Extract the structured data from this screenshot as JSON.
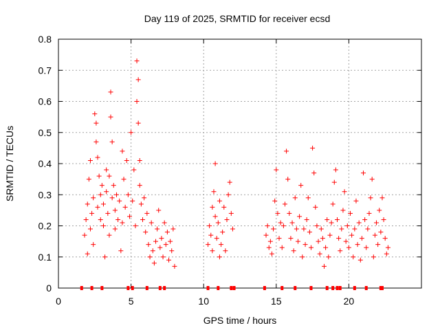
{
  "chart_data": {
    "type": "scatter",
    "title": "Day 119 of 2025, SRMTID for receiver ecsd",
    "xlabel": "GPS time / hours",
    "ylabel": "SRMTID / TECUs",
    "xlim": [
      0,
      25
    ],
    "ylim": [
      0,
      0.8
    ],
    "x_ticks": [
      "0",
      "5",
      "10",
      "15",
      "20"
    ],
    "x_tick_values": [
      0,
      5,
      10,
      15,
      20
    ],
    "y_ticks": [
      "0",
      "0.1",
      "0.2",
      "0.3",
      "0.4",
      "0.5",
      "0.6",
      "0.7",
      "0.8"
    ],
    "y_tick_values": [
      0,
      0.1,
      0.2,
      0.3,
      0.4,
      0.5,
      0.6,
      0.7,
      0.8
    ],
    "grid": true,
    "marker": "+",
    "color": "#ff0000",
    "series": [
      {
        "name": "SRMTID",
        "points": [
          [
            1.8,
            0.17
          ],
          [
            1.9,
            0.22
          ],
          [
            2.0,
            0.27
          ],
          [
            2.0,
            0.11
          ],
          [
            2.1,
            0.35
          ],
          [
            2.2,
            0.41
          ],
          [
            2.2,
            0.19
          ],
          [
            2.3,
            0.24
          ],
          [
            2.4,
            0.29
          ],
          [
            2.4,
            0.14
          ],
          [
            2.5,
            0.56
          ],
          [
            2.6,
            0.53
          ],
          [
            2.6,
            0.47
          ],
          [
            2.7,
            0.42
          ],
          [
            2.7,
            0.26
          ],
          [
            2.8,
            0.36
          ],
          [
            2.9,
            0.3
          ],
          [
            2.9,
            0.22
          ],
          [
            3.0,
            0.33
          ],
          [
            3.1,
            0.2
          ],
          [
            3.1,
            0.27
          ],
          [
            3.2,
            0.1
          ],
          [
            3.3,
            0.38
          ],
          [
            3.3,
            0.31
          ],
          [
            3.4,
            0.24
          ],
          [
            3.5,
            0.36
          ],
          [
            3.5,
            0.17
          ],
          [
            3.6,
            0.63
          ],
          [
            3.6,
            0.55
          ],
          [
            3.7,
            0.47
          ],
          [
            3.7,
            0.29
          ],
          [
            3.8,
            0.33
          ],
          [
            3.9,
            0.25
          ],
          [
            3.9,
            0.19
          ],
          [
            4.0,
            0.3
          ],
          [
            4.1,
            0.22
          ],
          [
            4.2,
            0.28
          ],
          [
            4.3,
            0.12
          ],
          [
            4.4,
            0.44
          ],
          [
            4.4,
            0.21
          ],
          [
            4.5,
            0.35
          ],
          [
            4.6,
            0.26
          ],
          [
            4.7,
            0.41
          ],
          [
            4.8,
            0.3
          ],
          [
            4.9,
            0.23
          ],
          [
            5.0,
            0.5
          ],
          [
            5.1,
            0.28
          ],
          [
            5.2,
            0.38
          ],
          [
            5.3,
            0.2
          ],
          [
            5.4,
            0.6
          ],
          [
            5.4,
            0.73
          ],
          [
            5.5,
            0.67
          ],
          [
            5.5,
            0.53
          ],
          [
            5.6,
            0.41
          ],
          [
            5.6,
            0.33
          ],
          [
            5.7,
            0.27
          ],
          [
            5.8,
            0.22
          ],
          [
            5.9,
            0.29
          ],
          [
            6.0,
            0.18
          ],
          [
            6.1,
            0.24
          ],
          [
            6.2,
            0.14
          ],
          [
            6.3,
            0.1
          ],
          [
            6.4,
            0.21
          ],
          [
            6.5,
            0.12
          ],
          [
            6.6,
            0.08
          ],
          [
            6.7,
            0.15
          ],
          [
            6.8,
            0.19
          ],
          [
            6.9,
            0.25
          ],
          [
            7.0,
            0.13
          ],
          [
            7.1,
            0.16
          ],
          [
            7.2,
            0.1
          ],
          [
            7.3,
            0.21
          ],
          [
            7.4,
            0.14
          ],
          [
            7.5,
            0.18
          ],
          [
            7.6,
            0.09
          ],
          [
            7.7,
            0.15
          ],
          [
            7.8,
            0.12
          ],
          [
            7.9,
            0.19
          ],
          [
            8.0,
            0.07
          ],
          [
            10.3,
            0.14
          ],
          [
            10.4,
            0.2
          ],
          [
            10.5,
            0.17
          ],
          [
            10.6,
            0.26
          ],
          [
            10.6,
            0.12
          ],
          [
            10.7,
            0.31
          ],
          [
            10.8,
            0.4
          ],
          [
            10.8,
            0.23
          ],
          [
            10.9,
            0.16
          ],
          [
            11.0,
            0.21
          ],
          [
            11.1,
            0.28
          ],
          [
            11.1,
            0.1
          ],
          [
            11.2,
            0.14
          ],
          [
            11.3,
            0.18
          ],
          [
            11.4,
            0.26
          ],
          [
            11.5,
            0.12
          ],
          [
            11.6,
            0.22
          ],
          [
            11.7,
            0.3
          ],
          [
            11.8,
            0.34
          ],
          [
            11.9,
            0.24
          ],
          [
            12.0,
            0.19
          ],
          [
            14.3,
            0.17
          ],
          [
            14.4,
            0.2
          ],
          [
            14.5,
            0.13
          ],
          [
            14.6,
            0.15
          ],
          [
            14.7,
            0.11
          ],
          [
            14.8,
            0.19
          ],
          [
            14.9,
            0.28
          ],
          [
            15.0,
            0.38
          ],
          [
            15.1,
            0.24
          ],
          [
            15.2,
            0.16
          ],
          [
            15.3,
            0.21
          ],
          [
            15.4,
            0.13
          ],
          [
            15.5,
            0.2
          ],
          [
            15.6,
            0.27
          ],
          [
            15.7,
            0.44
          ],
          [
            15.8,
            0.35
          ],
          [
            15.9,
            0.24
          ],
          [
            16.0,
            0.16
          ],
          [
            16.1,
            0.21
          ],
          [
            16.2,
            0.12
          ],
          [
            16.3,
            0.29
          ],
          [
            16.4,
            0.19
          ],
          [
            16.5,
            0.15
          ],
          [
            16.6,
            0.23
          ],
          [
            16.7,
            0.33
          ],
          [
            16.8,
            0.1
          ],
          [
            16.9,
            0.19
          ],
          [
            17.0,
            0.14
          ],
          [
            17.1,
            0.22
          ],
          [
            17.2,
            0.29
          ],
          [
            17.3,
            0.18
          ],
          [
            17.4,
            0.13
          ],
          [
            17.5,
            0.45
          ],
          [
            17.6,
            0.37
          ],
          [
            17.7,
            0.26
          ],
          [
            17.8,
            0.2
          ],
          [
            17.9,
            0.15
          ],
          [
            18.0,
            0.11
          ],
          [
            18.1,
            0.19
          ],
          [
            18.2,
            0.16
          ],
          [
            18.3,
            0.07
          ],
          [
            18.4,
            0.13
          ],
          [
            18.5,
            0.22
          ],
          [
            18.6,
            0.1
          ],
          [
            18.7,
            0.17
          ],
          [
            18.8,
            0.21
          ],
          [
            18.9,
            0.27
          ],
          [
            19.0,
            0.34
          ],
          [
            19.1,
            0.38
          ],
          [
            19.2,
            0.22
          ],
          [
            19.3,
            0.16
          ],
          [
            19.4,
            0.12
          ],
          [
            19.5,
            0.19
          ],
          [
            19.6,
            0.25
          ],
          [
            19.7,
            0.31
          ],
          [
            19.8,
            0.15
          ],
          [
            19.9,
            0.2
          ],
          [
            20.0,
            0.13
          ],
          [
            20.1,
            0.24
          ],
          [
            20.2,
            0.17
          ],
          [
            20.3,
            0.1
          ],
          [
            20.4,
            0.19
          ],
          [
            20.5,
            0.28
          ],
          [
            20.6,
            0.14
          ],
          [
            20.7,
            0.21
          ],
          [
            20.8,
            0.09
          ],
          [
            20.9,
            0.16
          ],
          [
            21.0,
            0.37
          ],
          [
            21.1,
            0.22
          ],
          [
            21.2,
            0.13
          ],
          [
            21.3,
            0.19
          ],
          [
            21.4,
            0.24
          ],
          [
            21.5,
            0.29
          ],
          [
            21.6,
            0.35
          ],
          [
            21.7,
            0.1
          ],
          [
            21.8,
            0.17
          ],
          [
            21.9,
            0.21
          ],
          [
            22.0,
            0.14
          ],
          [
            22.1,
            0.25
          ],
          [
            22.2,
            0.18
          ],
          [
            22.3,
            0.29
          ],
          [
            22.4,
            0.22
          ],
          [
            22.5,
            0.16
          ],
          [
            22.6,
            0.11
          ],
          [
            22.7,
            0.13
          ]
        ]
      }
    ],
    "zero_markers": [
      1.6,
      2.3,
      3.0,
      4.8,
      5.1,
      6.1,
      7.0,
      7.3,
      10.3,
      11.0,
      11.9,
      12.1,
      14.2,
      15.4,
      16.3,
      17.4,
      18.5,
      18.9,
      19.2,
      19.4,
      20.4,
      21.2,
      22.2,
      22.3
    ]
  }
}
